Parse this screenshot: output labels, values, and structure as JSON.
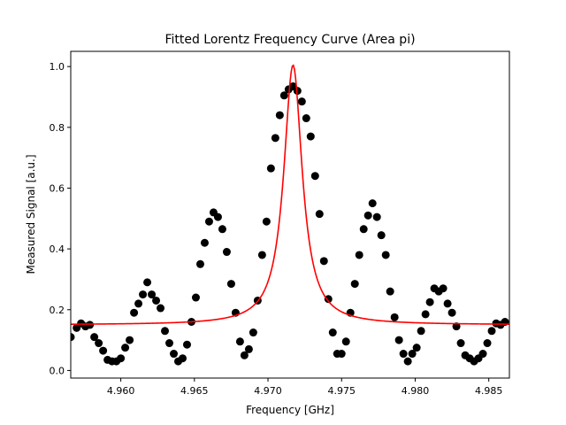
{
  "chart_data": {
    "type": "scatter",
    "title": "Fitted Lorentz Frequency Curve (Area pi)",
    "xlabel": "Frequency [GHz]",
    "ylabel": "Measured Signal [a.u.]",
    "xlim": [
      4.9566,
      4.9864
    ],
    "ylim": [
      -0.025,
      1.05
    ],
    "x_ticks": [
      "4.960",
      "4.965",
      "4.970",
      "4.975",
      "4.980",
      "4.985"
    ],
    "y_ticks": [
      "0.0",
      "0.2",
      "0.4",
      "0.6",
      "0.8",
      "1.0"
    ],
    "grid": false,
    "legend": "none",
    "colors": {
      "points": "#000000",
      "fit": "#ff0000"
    },
    "series": [
      {
        "type": "scatter",
        "points": [
          [
            4.9566,
            0.11
          ],
          [
            4.957,
            0.14
          ],
          [
            4.9573,
            0.155
          ],
          [
            4.9576,
            0.145
          ],
          [
            4.9579,
            0.15
          ],
          [
            4.9582,
            0.11
          ],
          [
            4.9585,
            0.09
          ],
          [
            4.9588,
            0.065
          ],
          [
            4.9591,
            0.035
          ],
          [
            4.9594,
            0.03
          ],
          [
            4.9597,
            0.03
          ],
          [
            4.96,
            0.04
          ],
          [
            4.9603,
            0.075
          ],
          [
            4.9606,
            0.1
          ],
          [
            4.9609,
            0.19
          ],
          [
            4.9612,
            0.22
          ],
          [
            4.9615,
            0.25
          ],
          [
            4.9618,
            0.29
          ],
          [
            4.9621,
            0.25
          ],
          [
            4.9624,
            0.23
          ],
          [
            4.9627,
            0.205
          ],
          [
            4.963,
            0.13
          ],
          [
            4.9633,
            0.09
          ],
          [
            4.9636,
            0.055
          ],
          [
            4.9639,
            0.03
          ],
          [
            4.9642,
            0.04
          ],
          [
            4.9645,
            0.085
          ],
          [
            4.9648,
            0.16
          ],
          [
            4.9651,
            0.24
          ],
          [
            4.9654,
            0.35
          ],
          [
            4.9657,
            0.42
          ],
          [
            4.966,
            0.49
          ],
          [
            4.9663,
            0.52
          ],
          [
            4.9666,
            0.505
          ],
          [
            4.9669,
            0.465
          ],
          [
            4.9672,
            0.39
          ],
          [
            4.9675,
            0.285
          ],
          [
            4.9678,
            0.19
          ],
          [
            4.9681,
            0.095
          ],
          [
            4.9684,
            0.05
          ],
          [
            4.9687,
            0.07
          ],
          [
            4.969,
            0.125
          ],
          [
            4.9693,
            0.23
          ],
          [
            4.9696,
            0.38
          ],
          [
            4.9699,
            0.49
          ],
          [
            4.9702,
            0.665
          ],
          [
            4.9705,
            0.765
          ],
          [
            4.9708,
            0.84
          ],
          [
            4.9711,
            0.905
          ],
          [
            4.9714,
            0.925
          ],
          [
            4.9717,
            0.935
          ],
          [
            4.972,
            0.92
          ],
          [
            4.9723,
            0.885
          ],
          [
            4.9726,
            0.83
          ],
          [
            4.9729,
            0.77
          ],
          [
            4.9732,
            0.64
          ],
          [
            4.9735,
            0.515
          ],
          [
            4.9738,
            0.36
          ],
          [
            4.9741,
            0.235
          ],
          [
            4.9744,
            0.125
          ],
          [
            4.9747,
            0.055
          ],
          [
            4.975,
            0.055
          ],
          [
            4.9753,
            0.095
          ],
          [
            4.9756,
            0.19
          ],
          [
            4.9759,
            0.285
          ],
          [
            4.9762,
            0.38
          ],
          [
            4.9765,
            0.465
          ],
          [
            4.9768,
            0.51
          ],
          [
            4.9771,
            0.55
          ],
          [
            4.9774,
            0.505
          ],
          [
            4.9777,
            0.445
          ],
          [
            4.978,
            0.38
          ],
          [
            4.9783,
            0.26
          ],
          [
            4.9786,
            0.175
          ],
          [
            4.9789,
            0.1
          ],
          [
            4.9792,
            0.055
          ],
          [
            4.9795,
            0.03
          ],
          [
            4.9798,
            0.055
          ],
          [
            4.9801,
            0.075
          ],
          [
            4.9804,
            0.13
          ],
          [
            4.9807,
            0.185
          ],
          [
            4.981,
            0.225
          ],
          [
            4.9813,
            0.27
          ],
          [
            4.9816,
            0.26
          ],
          [
            4.9819,
            0.27
          ],
          [
            4.9822,
            0.22
          ],
          [
            4.9825,
            0.19
          ],
          [
            4.9828,
            0.145
          ],
          [
            4.9831,
            0.09
          ],
          [
            4.9834,
            0.05
          ],
          [
            4.9837,
            0.04
          ],
          [
            4.984,
            0.03
          ],
          [
            4.9843,
            0.04
          ],
          [
            4.9846,
            0.055
          ],
          [
            4.9849,
            0.09
          ],
          [
            4.9852,
            0.13
          ],
          [
            4.9855,
            0.155
          ],
          [
            4.9858,
            0.15
          ],
          [
            4.9861,
            0.16
          ]
        ]
      },
      {
        "type": "line",
        "function": "lorentzian",
        "x0": 4.9717,
        "gamma": 0.00076,
        "amplitude": 0.855,
        "offset": 0.15
      }
    ]
  }
}
